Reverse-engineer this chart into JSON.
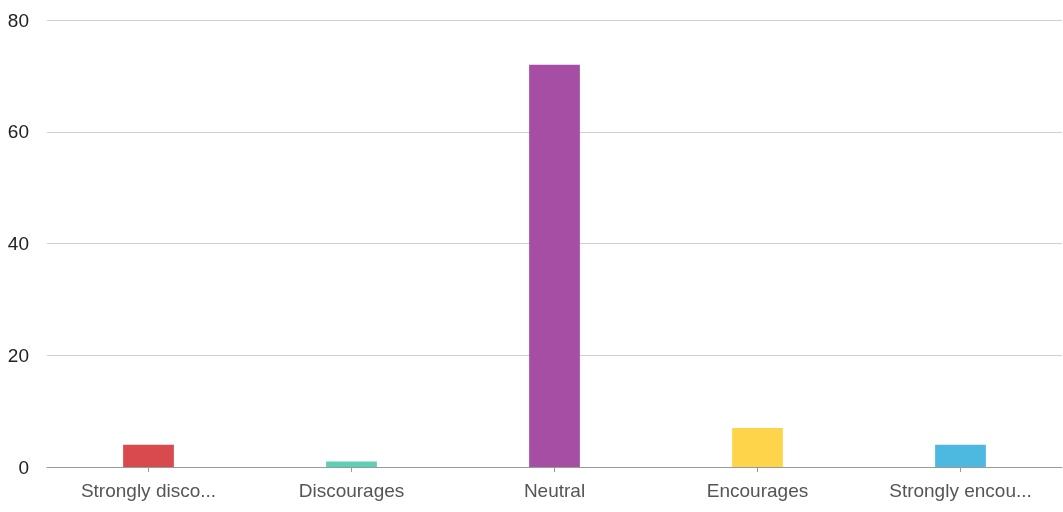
{
  "chart_data": {
    "type": "bar",
    "categories": [
      "Strongly disco...",
      "Discourages",
      "Neutral",
      "Encourages",
      "Strongly encou..."
    ],
    "values": [
      4,
      1,
      72,
      7,
      4
    ],
    "colors": [
      "#d94a4e",
      "#5ccfb5",
      "#a64ea4",
      "#fed54a",
      "#4db9e1"
    ],
    "ylim": [
      0,
      80
    ],
    "yticks": [
      0,
      20,
      40,
      60,
      80
    ],
    "grid": "y"
  }
}
